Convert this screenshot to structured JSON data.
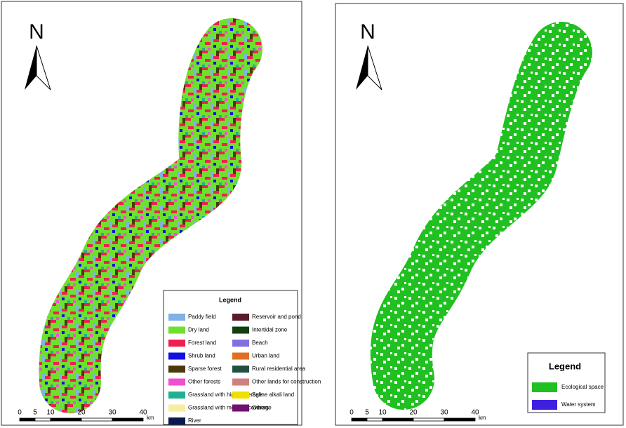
{
  "left_map": {
    "north": "N",
    "legend": {
      "title": "Legend",
      "items": [
        {
          "label": "Paddy field",
          "color": "#7fb2e5"
        },
        {
          "label": "Dry land",
          "color": "#6ee02e"
        },
        {
          "label": "Forest land",
          "color": "#ef2050"
        },
        {
          "label": "Shrub land",
          "color": "#1010e0"
        },
        {
          "label": "Sparse forest",
          "color": "#4a3a0a"
        },
        {
          "label": "Other forests",
          "color": "#f050d0"
        },
        {
          "label": "Grassland with high coverage",
          "color": "#20b090"
        },
        {
          "label": "Grassland with medium coverage",
          "color": "#f5eea0"
        },
        {
          "label": "River",
          "color": "#0a1a50"
        },
        {
          "label": "Reservoir and pond",
          "color": "#5a1a2a"
        },
        {
          "label": "Intertidal zone",
          "color": "#104010"
        },
        {
          "label": "Beach",
          "color": "#8070e0"
        },
        {
          "label": "Urban land",
          "color": "#e07020"
        },
        {
          "label": "Rural residential area",
          "color": "#205040"
        },
        {
          "label": "Other lands for construction",
          "color": "#d08080"
        },
        {
          "label": "Saline alkali land",
          "color": "#f0e000"
        },
        {
          "label": "Others",
          "color": "#701070"
        }
      ]
    },
    "scale": {
      "ticks": [
        0,
        5,
        10,
        20,
        30,
        40
      ],
      "unit": "km"
    }
  },
  "right_map": {
    "north": "N",
    "legend": {
      "title": "Legend",
      "items": [
        {
          "label": "Ecological space",
          "color": "#20c020"
        },
        {
          "label": "Water system",
          "color": "#4020e0"
        }
      ]
    },
    "scale": {
      "ticks": [
        0,
        5,
        10,
        20,
        30,
        40
      ],
      "unit": "km"
    }
  }
}
